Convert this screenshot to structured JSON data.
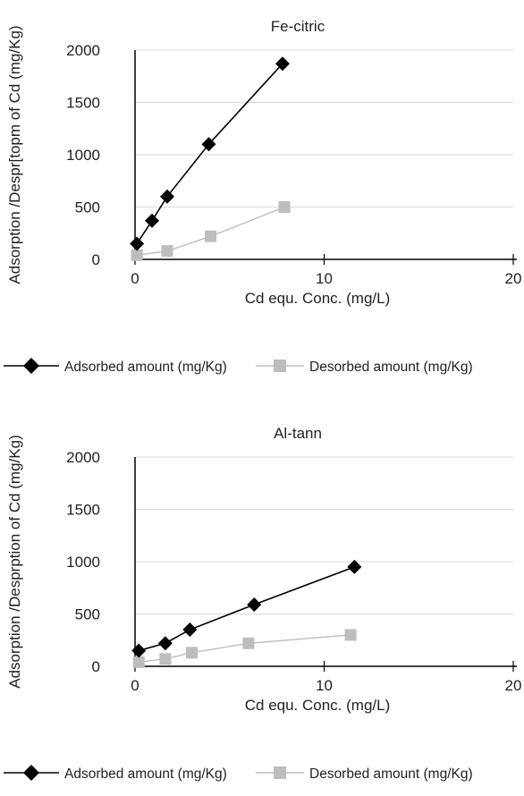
{
  "chart_data": [
    {
      "type": "line",
      "title": "Fe-citric",
      "xlabel": "Cd equ. Conc. (mg/L)",
      "ylabel": "Adsorption /Despr[topm of Cd (mg/Kg)",
      "xlim": [
        0,
        20
      ],
      "ylim": [
        0,
        2000
      ],
      "xticks": [
        "0",
        "10",
        "20"
      ],
      "yticks": [
        "0",
        "500",
        "1000",
        "1500",
        "2000"
      ],
      "grid": "horizontal",
      "legend": "bottom",
      "series": [
        {
          "name": "Adsorbed amount (mg/Kg)",
          "marker": "diamond",
          "color": "#000000",
          "x": [
            0.1,
            0.9,
            1.7,
            3.9,
            7.8
          ],
          "y": [
            150,
            370,
            600,
            1100,
            1870
          ]
        },
        {
          "name": "Desorbed amount (mg/Kg)",
          "marker": "square",
          "color": "#bdbdbd",
          "x": [
            0.1,
            1.7,
            4.0,
            7.9
          ],
          "y": [
            40,
            80,
            220,
            500
          ]
        }
      ]
    },
    {
      "type": "line",
      "title": "Al-tann",
      "xlabel": "Cd equ. Conc. (mg/L)",
      "ylabel": "Adsorption /Desprption of Cd (mg/Kg)",
      "xlim": [
        0,
        20
      ],
      "ylim": [
        0,
        2000
      ],
      "xticks": [
        "0",
        "10",
        "20"
      ],
      "yticks": [
        "0",
        "500",
        "1000",
        "1500",
        "2000"
      ],
      "grid": "horizontal",
      "legend": "bottom",
      "series": [
        {
          "name": "Adsorbed amount (mg/Kg)",
          "marker": "diamond",
          "color": "#000000",
          "x": [
            0.2,
            1.6,
            2.9,
            6.3,
            11.6
          ],
          "y": [
            150,
            220,
            350,
            590,
            950
          ]
        },
        {
          "name": "Desorbed amount (mg/Kg)",
          "marker": "square",
          "color": "#bdbdbd",
          "x": [
            0.2,
            1.6,
            3.0,
            6.0,
            11.4
          ],
          "y": [
            40,
            70,
            130,
            220,
            300
          ]
        }
      ]
    }
  ]
}
